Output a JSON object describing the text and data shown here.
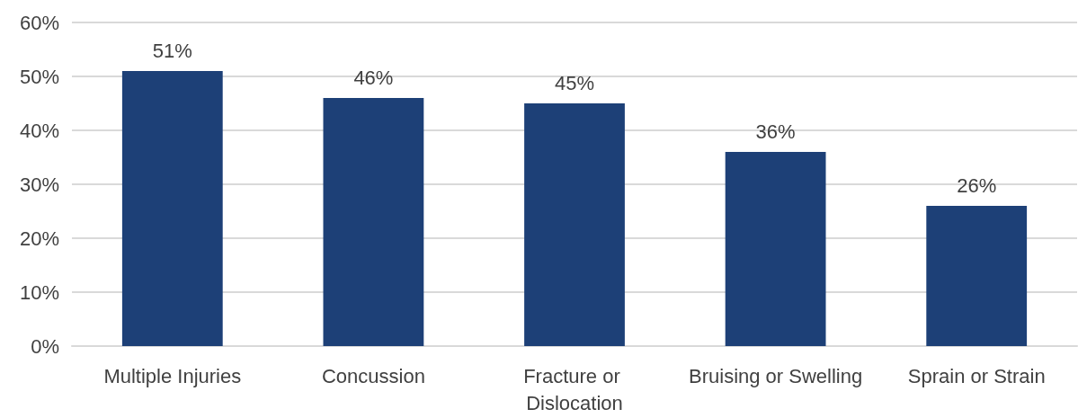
{
  "chart_data": {
    "type": "bar",
    "categories": [
      "Multiple Injuries",
      "Concussion",
      "Fracture or Dislocation",
      "Bruising or Swelling",
      "Sprain or Strain"
    ],
    "values": [
      51,
      46,
      45,
      36,
      26
    ],
    "color": "#1d4077",
    "value_labels": [
      "51%",
      "46%",
      "45%",
      "36%",
      "26%"
    ],
    "ylim": [
      0,
      60
    ],
    "yticks": [
      {
        "value": 0,
        "label": "0%"
      },
      {
        "value": 10,
        "label": "10%"
      },
      {
        "value": 20,
        "label": "20%"
      },
      {
        "value": 30,
        "label": "30%"
      },
      {
        "value": 40,
        "label": "40%"
      },
      {
        "value": 50,
        "label": "50%"
      },
      {
        "value": 60,
        "label": "60%"
      }
    ],
    "grid": "y"
  }
}
